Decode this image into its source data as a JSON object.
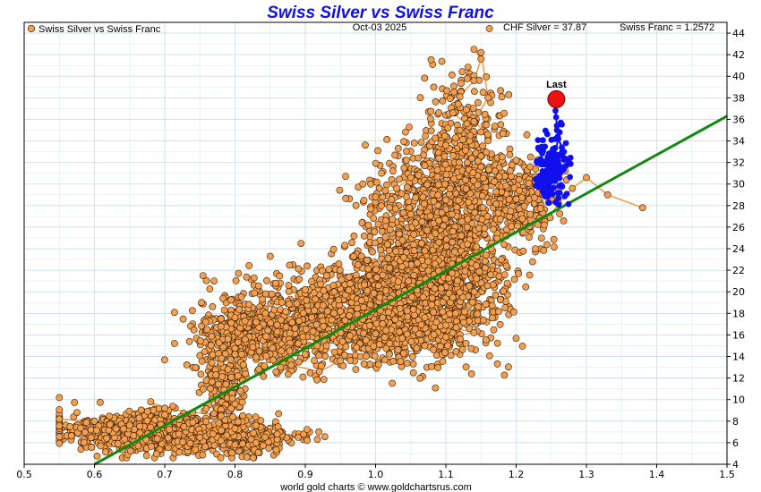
{
  "chart_data": {
    "type": "scatter",
    "title": "Swiss Silver vs Swiss Franc",
    "date": "Oct-03  2025",
    "silver_readout": "CHF Silver = 37.87",
    "franc_readout": "Swiss Franc = 1.2572",
    "legend": {
      "label": "Swiss Silver vs Swiss Franc",
      "placement": "top-left"
    },
    "footer": "world gold charts © www.goldchartsrus.com",
    "xlabel": "",
    "ylabel": "",
    "xlim": [
      0.5,
      1.5
    ],
    "ylim": [
      4,
      45
    ],
    "x_ticks": [
      "0.5",
      "0.6",
      "0.7",
      "0.8",
      "0.9",
      "1.0",
      "1.1",
      "1.2",
      "1.3",
      "1.4",
      "1.5"
    ],
    "y_ticks": [
      "4",
      "6",
      "8",
      "10",
      "12",
      "14",
      "16",
      "18",
      "20",
      "22",
      "24",
      "26",
      "28",
      "30",
      "32",
      "34",
      "36",
      "38",
      "40",
      "42",
      "44"
    ],
    "grid": true,
    "colors": {
      "history": "#f0a050",
      "history_edge": "#3a1a00",
      "recent": "#1010ee",
      "last": "#ee1111",
      "trend": "#118811",
      "title": "#1111dd"
    },
    "trend_line": {
      "x": [
        0.6,
        1.5
      ],
      "y": [
        4.0,
        36.3
      ]
    },
    "last_point": {
      "x": 1.2572,
      "y": 37.87,
      "label": "Last"
    },
    "history_path": [
      [
        0.55,
        8.2
      ],
      [
        0.6,
        8.0
      ],
      [
        0.65,
        7.6
      ],
      [
        0.69,
        7.2
      ],
      [
        0.72,
        6.8
      ],
      [
        0.75,
        6.5
      ],
      [
        0.78,
        6.2
      ],
      [
        0.8,
        5.8
      ],
      [
        0.83,
        6.0
      ],
      [
        0.86,
        6.3
      ],
      [
        0.89,
        6.5
      ],
      [
        0.86,
        6.8
      ],
      [
        0.83,
        7.6
      ],
      [
        0.8,
        7.3
      ],
      [
        0.78,
        8.6
      ],
      [
        0.74,
        8.8
      ],
      [
        0.7,
        9.2
      ],
      [
        0.68,
        9.8
      ],
      [
        0.7,
        8.6
      ],
      [
        0.74,
        7.9
      ],
      [
        0.78,
        8.5
      ],
      [
        0.8,
        9.6
      ],
      [
        0.8,
        11.2
      ],
      [
        0.79,
        12.8
      ],
      [
        0.8,
        14.2
      ],
      [
        0.79,
        15.6
      ],
      [
        0.78,
        16.8
      ],
      [
        0.8,
        17.6
      ],
      [
        0.83,
        17.2
      ],
      [
        0.86,
        16.3
      ],
      [
        0.89,
        15.2
      ],
      [
        0.9,
        14.2
      ],
      [
        0.88,
        13.2
      ],
      [
        0.92,
        12.6
      ],
      [
        0.95,
        13.6
      ],
      [
        0.93,
        15.0
      ],
      [
        0.96,
        16.8
      ],
      [
        0.95,
        18.2
      ],
      [
        0.9,
        20.2
      ],
      [
        0.94,
        20.6
      ],
      [
        0.98,
        19.2
      ],
      [
        1.01,
        17.6
      ],
      [
        1.0,
        16.1
      ],
      [
        1.02,
        15.2
      ],
      [
        1.04,
        14.3
      ],
      [
        1.07,
        15.0
      ],
      [
        1.1,
        15.8
      ],
      [
        1.14,
        16.2
      ],
      [
        1.1,
        16.9
      ],
      [
        1.07,
        17.6
      ],
      [
        1.08,
        18.8
      ],
      [
        1.05,
        20.2
      ],
      [
        1.02,
        22.2
      ],
      [
        1.04,
        23.2
      ],
      [
        1.07,
        23.8
      ],
      [
        1.09,
        24.6
      ],
      [
        1.11,
        25.6
      ],
      [
        1.09,
        26.6
      ],
      [
        1.05,
        27.2
      ],
      [
        1.02,
        27.8
      ],
      [
        1.0,
        28.8
      ],
      [
        1.03,
        29.6
      ],
      [
        1.05,
        30.6
      ],
      [
        1.07,
        31.7
      ],
      [
        1.09,
        32.4
      ],
      [
        1.1,
        33.6
      ],
      [
        1.12,
        35.0
      ],
      [
        1.13,
        35.6
      ],
      [
        1.11,
        36.6
      ],
      [
        1.12,
        38.1
      ],
      [
        1.14,
        39.6
      ],
      [
        1.15,
        41.6
      ],
      [
        1.14,
        42.5
      ],
      [
        1.15,
        42.2
      ],
      [
        1.16,
        38.0
      ],
      [
        1.14,
        35.8
      ],
      [
        1.16,
        34.6
      ],
      [
        1.15,
        32.6
      ],
      [
        1.15,
        31.6
      ],
      [
        1.17,
        31.2
      ],
      [
        1.2,
        32.2
      ],
      [
        1.22,
        31.6
      ],
      [
        1.2,
        28.6
      ],
      [
        1.22,
        27.2
      ],
      [
        1.24,
        26.2
      ],
      [
        1.26,
        28.2
      ],
      [
        1.28,
        29.6
      ],
      [
        1.3,
        30.6
      ],
      [
        1.33,
        29.0
      ],
      [
        1.38,
        27.8
      ]
    ],
    "history_clusters": [
      {
        "name": "early-base",
        "cx": 0.68,
        "cy": 7.0,
        "sx": 0.07,
        "sy": 0.9,
        "n": 800
      },
      {
        "name": "early-tail",
        "cx": 0.82,
        "cy": 6.3,
        "sx": 0.04,
        "sy": 0.7,
        "n": 200
      },
      {
        "name": "rise-column",
        "cx": 0.785,
        "cy": 11.5,
        "sx": 0.015,
        "sy": 3.0,
        "n": 220
      },
      {
        "name": "mid-left",
        "cx": 0.82,
        "cy": 16.0,
        "sx": 0.04,
        "sy": 2.0,
        "n": 420
      },
      {
        "name": "mid-center",
        "cx": 0.92,
        "cy": 17.5,
        "sx": 0.05,
        "sy": 2.0,
        "n": 500
      },
      {
        "name": "main-1",
        "cx": 1.03,
        "cy": 18.5,
        "sx": 0.05,
        "sy": 2.4,
        "n": 900
      },
      {
        "name": "main-2",
        "cx": 1.09,
        "cy": 21.0,
        "sx": 0.05,
        "sy": 3.0,
        "n": 900
      },
      {
        "name": "upper",
        "cx": 1.09,
        "cy": 28.0,
        "sx": 0.05,
        "sy": 3.2,
        "n": 700
      },
      {
        "name": "upper-peak",
        "cx": 1.12,
        "cy": 34.5,
        "sx": 0.03,
        "sy": 3.0,
        "n": 200
      },
      {
        "name": "upper-right",
        "cx": 1.2,
        "cy": 29.0,
        "sx": 0.03,
        "sy": 2.0,
        "n": 220
      }
    ],
    "recent_path": [
      [
        1.24,
        29.6
      ],
      [
        1.245,
        30.6
      ],
      [
        1.25,
        29.4
      ],
      [
        1.245,
        30.9
      ],
      [
        1.255,
        31.6
      ],
      [
        1.26,
        32.6
      ],
      [
        1.265,
        33.4
      ],
      [
        1.26,
        34.2
      ],
      [
        1.268,
        33.0
      ],
      [
        1.255,
        32.8
      ],
      [
        1.262,
        34.8
      ],
      [
        1.258,
        35.4
      ],
      [
        1.257,
        36.2
      ],
      [
        1.256,
        36.8
      ],
      [
        1.2572,
        37.87
      ]
    ],
    "recent_cluster": {
      "cx": 1.25,
      "cy": 31.5,
      "sx": 0.012,
      "sy": 1.5,
      "n": 130
    }
  }
}
